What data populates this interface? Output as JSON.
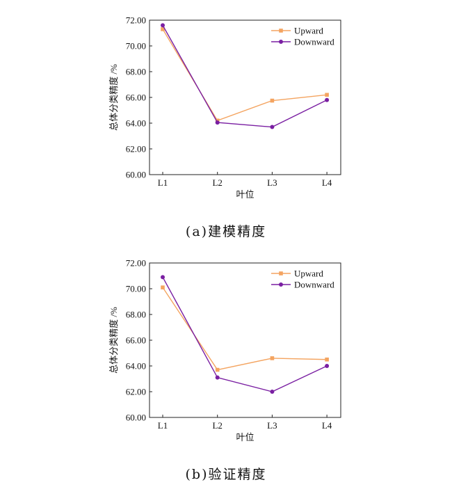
{
  "chart_data": [
    {
      "type": "line",
      "caption": "(a)建模精度",
      "xlabel": "叶位",
      "ylabel": "总体分类精度 /%",
      "categories": [
        "L1",
        "L2",
        "L3",
        "L4"
      ],
      "ylim": [
        60,
        72
      ],
      "yticks": [
        "60.00",
        "62.00",
        "64.00",
        "66.00",
        "68.00",
        "70.00",
        "72.00"
      ],
      "grid": false,
      "legend_position": "top-right",
      "series": [
        {
          "name": "Upward",
          "values": [
            71.3,
            64.2,
            65.75,
            66.2
          ],
          "color": "#F4A460",
          "marker": "square"
        },
        {
          "name": "Downward",
          "values": [
            71.6,
            64.05,
            63.7,
            65.8
          ],
          "color": "#7A1FA2",
          "marker": "circle"
        }
      ]
    },
    {
      "type": "line",
      "caption": "(b)验证精度",
      "xlabel": "叶位",
      "ylabel": "总体分类精度 /%",
      "categories": [
        "L1",
        "L2",
        "L3",
        "L4"
      ],
      "ylim": [
        60,
        72
      ],
      "yticks": [
        "60.00",
        "62.00",
        "64.00",
        "66.00",
        "68.00",
        "70.00",
        "72.00"
      ],
      "grid": false,
      "legend_position": "top-right",
      "series": [
        {
          "name": "Upward",
          "values": [
            70.1,
            63.7,
            64.6,
            64.5
          ],
          "color": "#F4A460",
          "marker": "square"
        },
        {
          "name": "Downward",
          "values": [
            70.9,
            63.1,
            62.0,
            64.0
          ],
          "color": "#7A1FA2",
          "marker": "circle"
        }
      ]
    }
  ]
}
